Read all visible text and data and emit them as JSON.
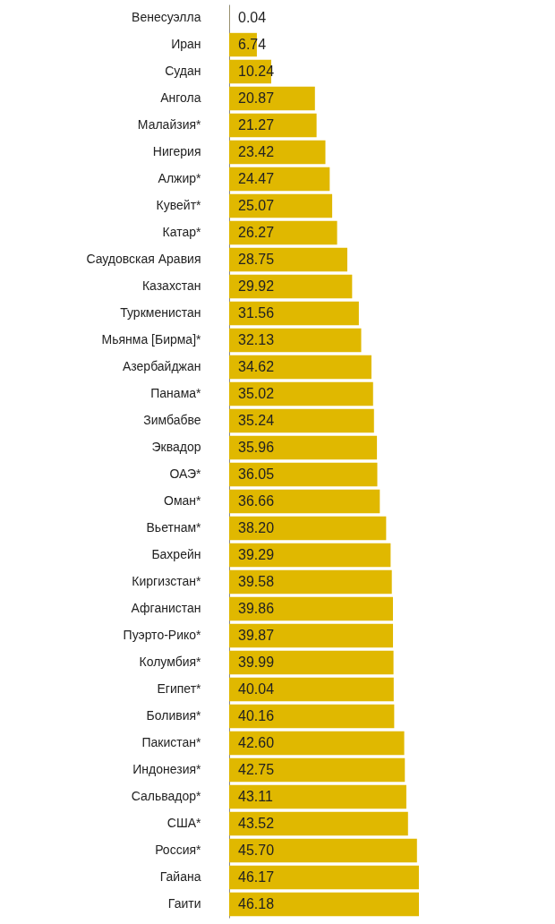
{
  "chart_data": {
    "type": "bar",
    "orientation": "horizontal",
    "value_labels": [
      "0.04",
      "6.74",
      "10.24",
      "20.87",
      "21.27",
      "23.42",
      "24.47",
      "25.07",
      "26.27",
      "28.75",
      "29.92",
      "31.56",
      "32.13",
      "34.62",
      "35.02",
      "35.24",
      "35.96",
      "36.05",
      "36.66",
      "38.20",
      "39.29",
      "39.58",
      "39.86",
      "39.87",
      "39.99",
      "40.04",
      "40.16",
      "42.60",
      "42.75",
      "43.11",
      "43.52",
      "45.70",
      "46.17",
      "46.18"
    ],
    "categories": [
      "Венесуэлла",
      "Иран",
      "Судан",
      "Ангола",
      "Малайзия*",
      "Нигерия",
      "Алжир*",
      "Кувейт*",
      "Катар*",
      "Саудовская Аравия",
      "Казахстан",
      "Туркменистан",
      "Мьянма [Бирма]*",
      "Азербайджан",
      "Панама*",
      "Зимбабве",
      "Эквадор",
      "ОАЭ*",
      "Оман*",
      "Вьетнам*",
      "Бахрейн",
      "Киргизстан*",
      "Афганистан",
      "Пуэрто-Рико*",
      "Колумбия*",
      "Египет*",
      "Боливия*",
      "Пакистан*",
      "Индонезия*",
      "Сальвадор*",
      "США*",
      "Россия*",
      "Гайана",
      "Гаити"
    ],
    "values": [
      0.04,
      6.74,
      10.24,
      20.87,
      21.27,
      23.42,
      24.47,
      25.07,
      26.27,
      28.75,
      29.92,
      31.56,
      32.13,
      34.62,
      35.02,
      35.24,
      35.96,
      36.05,
      36.66,
      38.2,
      39.29,
      39.58,
      39.86,
      39.87,
      39.99,
      40.04,
      40.16,
      42.6,
      42.75,
      43.11,
      43.52,
      45.7,
      46.17,
      46.18
    ],
    "color": "#e0b800"
  }
}
